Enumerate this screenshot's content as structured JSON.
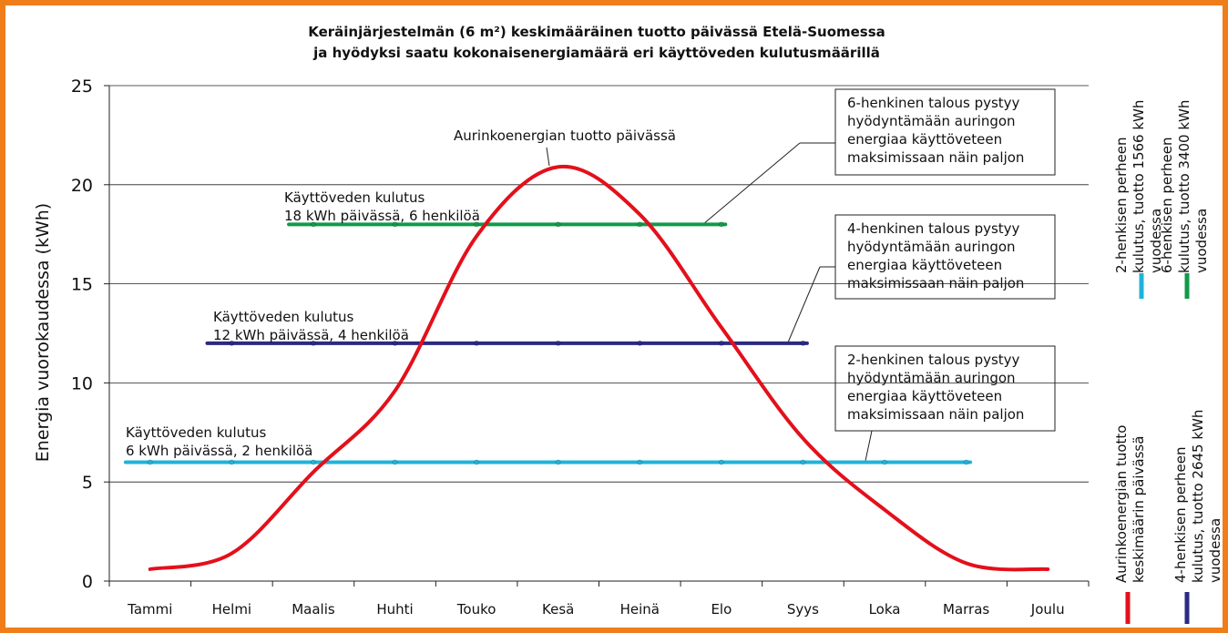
{
  "chart_data": {
    "type": "line",
    "title": [
      "Keräinjärjestelmän (6 m²) keskimääräinen tuotto päivässä Etelä-Suomessa",
      "ja hyödyksi saatu kokonaisenergiamäärä eri käyttöveden kulutusmäärillä"
    ],
    "y_label": "Energia vuorokaudessa (kWh)",
    "categories": [
      "Tammi",
      "Helmi",
      "Maalis",
      "Huhti",
      "Touko",
      "Kesä",
      "Heinä",
      "Elo",
      "Syys",
      "Loka",
      "Marras",
      "Joulu"
    ],
    "ylim": [
      0,
      25
    ],
    "yticks": [
      0,
      5,
      10,
      15,
      20,
      25
    ],
    "grid": true,
    "series": [
      {
        "name": "Aurinkoenergian tuotto keskimäärin päivässä",
        "color": "#e3101b",
        "smooth": true,
        "values": [
          0.6,
          1.4,
          5.5,
          9.6,
          17.4,
          20.9,
          18.5,
          12.8,
          7.2,
          3.6,
          0.9,
          0.6
        ]
      },
      {
        "name": "4-henkisen perheen kulutus, tuotto 2645 kWh vuodessa",
        "color": "#2b2a84",
        "values": [
          null,
          12,
          12,
          12,
          12,
          12,
          12,
          12,
          12,
          null,
          null,
          null
        ]
      },
      {
        "name": "2-henkisen perheen kulutus, tuotto 1566 kWh vuodessa",
        "color": "#1fb3d9",
        "values": [
          6,
          6,
          6,
          6,
          6,
          6,
          6,
          6,
          6,
          6,
          6,
          null
        ]
      },
      {
        "name": "6-henkisen perheen kulutus, tuotto 3400 kWh vuodessa",
        "color": "#109a4a",
        "values": [
          null,
          null,
          18,
          18,
          18,
          18,
          18,
          18,
          null,
          null,
          null,
          null
        ]
      }
    ],
    "annotations": [
      {
        "lines": [
          "Aurinkoenergian tuotto päivässä"
        ]
      },
      {
        "lines": [
          "Käyttöveden kulutus",
          "18 kWh päivässä, 6 henkilöä"
        ]
      },
      {
        "lines": [
          "Käyttöveden kulutus",
          "12 kWh päivässä, 4 henkilöä"
        ]
      },
      {
        "lines": [
          "Käyttöveden kulutus",
          "6 kWh päivässä, 2 henkilöä"
        ]
      },
      {
        "lines": [
          "6-henkinen talous pystyy",
          "hyödyntämään auringon",
          "energiaa käyttöveteen",
          "maksimissaan näin paljon"
        ]
      },
      {
        "lines": [
          "4-henkinen talous pystyy",
          "hyödyntämään auringon",
          "energiaa käyttöveteen",
          "maksimissaan näin paljon"
        ]
      },
      {
        "lines": [
          "2-henkinen talous pystyy",
          "hyödyntämään auringon",
          "energiaa käyttöveteen",
          "maksimissaan näin paljon"
        ]
      }
    ]
  }
}
